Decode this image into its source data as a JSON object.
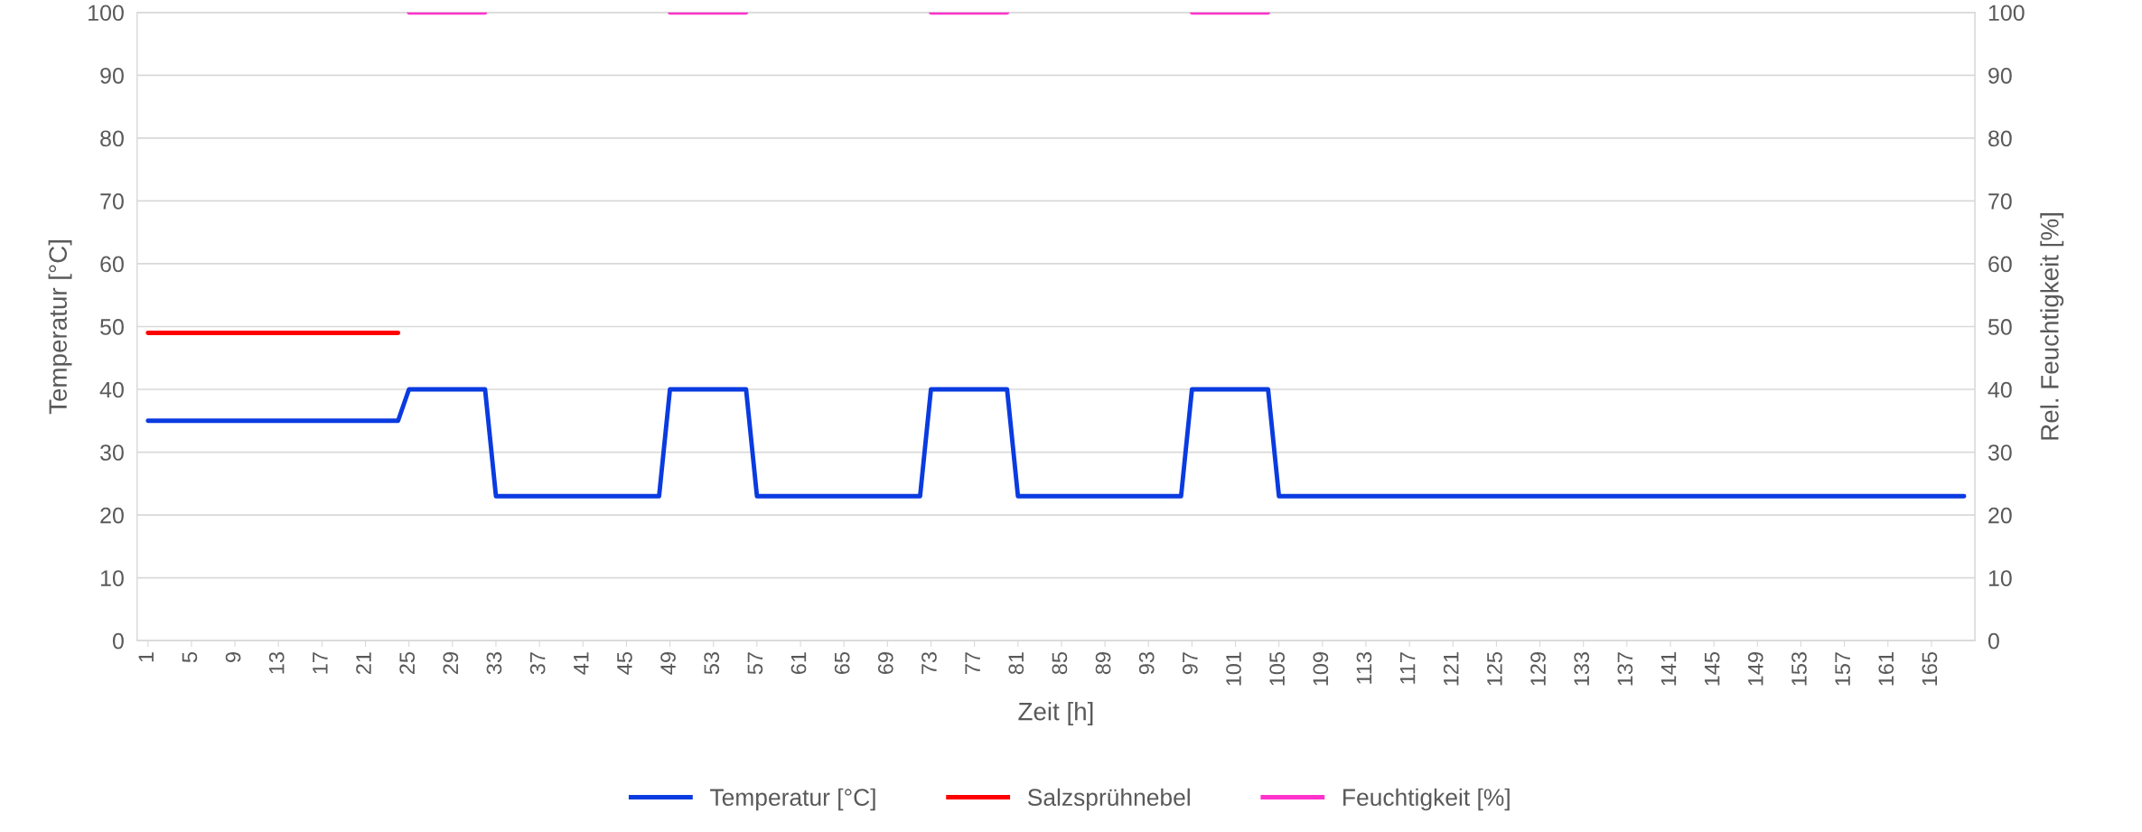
{
  "chart_data": {
    "type": "line",
    "xlabel": "Zeit [h]",
    "ylabel": "Temperatur [°C]",
    "y2label": "Rel. Feuchtigkeit [%]",
    "categories": [
      "1",
      null,
      null,
      null,
      "5",
      null,
      null,
      null,
      "9",
      null,
      null,
      null,
      "13",
      null,
      null,
      null,
      "17",
      null,
      null,
      null,
      "21",
      null,
      null,
      null,
      "25",
      null,
      null,
      null,
      "29",
      null,
      null,
      null,
      "33",
      null,
      null,
      null,
      "37",
      null,
      null,
      null,
      "41",
      null,
      null,
      null,
      "45",
      null,
      null,
      null,
      "49",
      null,
      null,
      null,
      "53",
      null,
      null,
      null,
      "57",
      null,
      null,
      null,
      "61",
      null,
      null,
      null,
      "65",
      null,
      null,
      null,
      "69",
      null,
      null,
      null,
      "73",
      null,
      null,
      null,
      "77",
      null,
      null,
      null,
      "81",
      null,
      null,
      null,
      "85",
      null,
      null,
      null,
      "89",
      null,
      null,
      null,
      "93",
      null,
      null,
      null,
      "97",
      null,
      null,
      null,
      "101",
      null,
      null,
      null,
      "105",
      null,
      null,
      null,
      "109",
      null,
      null,
      null,
      "113",
      null,
      null,
      null,
      "117",
      null,
      null,
      null,
      "121",
      null,
      null,
      null,
      "125",
      null,
      null,
      null,
      "129",
      null,
      null,
      null,
      "133",
      null,
      null,
      null,
      "137",
      null,
      null,
      null,
      "141",
      null,
      null,
      null,
      "145",
      null,
      null,
      null,
      "149",
      null,
      null,
      null,
      "153",
      null,
      null,
      null,
      "157",
      null,
      null,
      null,
      "161",
      null,
      null,
      null,
      "165",
      null,
      null,
      null
    ],
    "series": [
      {
        "name": "Temperatur [°C]",
        "color": "#0a3be0",
        "values": [
          35,
          35,
          35,
          35,
          35,
          35,
          35,
          35,
          35,
          35,
          35,
          35,
          35,
          35,
          35,
          35,
          35,
          35,
          35,
          35,
          35,
          35,
          35,
          35,
          40,
          40,
          40,
          40,
          40,
          40,
          40,
          40,
          23,
          23,
          23,
          23,
          23,
          23,
          23,
          23,
          23,
          23,
          23,
          23,
          23,
          23,
          23,
          23,
          40,
          40,
          40,
          40,
          40,
          40,
          40,
          40,
          23,
          23,
          23,
          23,
          23,
          23,
          23,
          23,
          23,
          23,
          23,
          23,
          23,
          23,
          23,
          23,
          40,
          40,
          40,
          40,
          40,
          40,
          40,
          40,
          23,
          23,
          23,
          23,
          23,
          23,
          23,
          23,
          23,
          23,
          23,
          23,
          23,
          23,
          23,
          23,
          40,
          40,
          40,
          40,
          40,
          40,
          40,
          40,
          23,
          23,
          23,
          23,
          23,
          23,
          23,
          23,
          23,
          23,
          23,
          23,
          23,
          23,
          23,
          23,
          23,
          23,
          23,
          23,
          23,
          23,
          23,
          23,
          23,
          23,
          23,
          23,
          23,
          23,
          23,
          23,
          23,
          23,
          23,
          23,
          23,
          23,
          23,
          23,
          23,
          23,
          23,
          23,
          23,
          23,
          23,
          23,
          23,
          23,
          23,
          23,
          23,
          23,
          23,
          23,
          23,
          23,
          23,
          23,
          23,
          23,
          23,
          23
        ]
      },
      {
        "name": "Salzsprühnebel",
        "color": "#ff0000",
        "values": [
          49,
          49,
          49,
          49,
          49,
          49,
          49,
          49,
          49,
          49,
          49,
          49,
          49,
          49,
          49,
          49,
          49,
          49,
          49,
          49,
          49,
          49,
          49,
          49,
          null,
          null,
          null,
          null,
          null,
          null,
          null,
          null,
          null,
          null,
          null,
          null,
          null,
          null,
          null,
          null,
          null,
          null,
          null,
          null,
          null,
          null,
          null,
          null,
          null,
          null,
          null,
          null,
          null,
          null,
          null,
          null,
          null,
          null,
          null,
          null,
          null,
          null,
          null,
          null,
          null,
          null,
          null,
          null,
          null,
          null,
          null,
          null,
          null,
          null,
          null,
          null,
          null,
          null,
          null,
          null,
          null,
          null,
          null,
          null,
          null,
          null,
          null,
          null,
          null,
          null,
          null,
          null,
          null,
          null,
          null,
          null,
          null,
          null,
          null,
          null,
          null,
          null,
          null,
          null,
          null,
          null,
          null,
          null,
          null,
          null,
          null,
          null,
          null,
          null,
          null,
          null,
          null,
          null,
          null,
          null,
          null,
          null,
          null,
          null,
          null,
          null,
          null,
          null,
          null,
          null,
          null,
          null,
          null,
          null,
          null,
          null,
          null,
          null,
          null,
          null,
          null,
          null,
          null,
          null,
          null,
          null,
          null,
          null,
          null,
          null,
          null,
          null,
          null,
          null,
          null,
          null,
          null,
          null,
          null,
          null,
          null,
          null,
          null,
          null,
          null,
          null,
          null,
          null
        ]
      },
      {
        "name": "Feuchtigkeit [%]",
        "color": "#ff33cc",
        "axis": "y2",
        "values": [
          null,
          null,
          null,
          null,
          null,
          null,
          null,
          null,
          null,
          null,
          null,
          null,
          null,
          null,
          null,
          null,
          null,
          null,
          null,
          null,
          null,
          null,
          null,
          null,
          100,
          100,
          100,
          100,
          100,
          100,
          100,
          100,
          null,
          null,
          null,
          null,
          null,
          null,
          null,
          null,
          null,
          null,
          null,
          null,
          null,
          null,
          null,
          null,
          100,
          100,
          100,
          100,
          100,
          100,
          100,
          100,
          null,
          null,
          null,
          null,
          null,
          null,
          null,
          null,
          null,
          null,
          null,
          null,
          null,
          null,
          null,
          null,
          100,
          100,
          100,
          100,
          100,
          100,
          100,
          100,
          null,
          null,
          null,
          null,
          null,
          null,
          null,
          null,
          null,
          null,
          null,
          null,
          null,
          null,
          null,
          null,
          100,
          100,
          100,
          100,
          100,
          100,
          100,
          100,
          null,
          null,
          null,
          null,
          null,
          null,
          null,
          null,
          null,
          null,
          null,
          null,
          null,
          null,
          null,
          null,
          null,
          null,
          null,
          null,
          null,
          null,
          null,
          null,
          null,
          null,
          null,
          null,
          null,
          null,
          null,
          null,
          null,
          null,
          null,
          null,
          null,
          null,
          null,
          null,
          null,
          null,
          null,
          null,
          null,
          null,
          null,
          null,
          null,
          null,
          null,
          null,
          null,
          null,
          null,
          null,
          null,
          null,
          null,
          null,
          null,
          null,
          null,
          null
        ]
      }
    ],
    "ylim": [
      0,
      100
    ],
    "yticks": [
      0,
      10,
      20,
      30,
      40,
      50,
      60,
      70,
      80,
      90,
      100
    ],
    "y2lim": [
      0,
      100
    ],
    "y2ticks": [
      0,
      10,
      20,
      30,
      40,
      50,
      60,
      70,
      80,
      90,
      100
    ],
    "grid": "y",
    "legend": "bottom",
    "marker": "none",
    "line_style": "solid"
  }
}
